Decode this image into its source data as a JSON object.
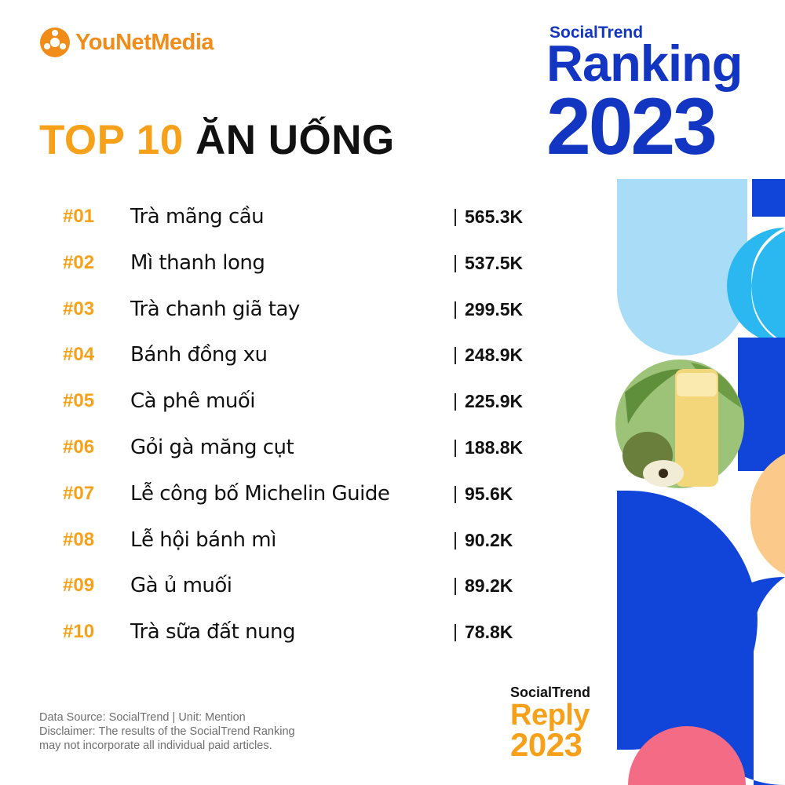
{
  "brand": {
    "logo_text_1": "YouNet",
    "logo_text_2": "Media",
    "logo_icon": "younet-logo-icon",
    "accent_color": "#f7a11a",
    "primary_color": "#1235c2"
  },
  "header": {
    "socialtrend": "SocialTrend",
    "ranking": "Ranking",
    "year": "2023"
  },
  "title": {
    "accent": "TOP 10",
    "main": "ĂN UỐNG"
  },
  "ranking": [
    {
      "rank": "#01",
      "name": "Trà mãng cầu",
      "value": "565.3K"
    },
    {
      "rank": "#02",
      "name": "Mì thanh long",
      "value": "537.5K"
    },
    {
      "rank": "#03",
      "name": "Trà chanh giã tay",
      "value": "299.5K"
    },
    {
      "rank": "#04",
      "name": "Bánh đồng xu",
      "value": "248.9K"
    },
    {
      "rank": "#05",
      "name": "Cà phê muối",
      "value": "225.9K"
    },
    {
      "rank": "#06",
      "name": "Gỏi gà măng cụt",
      "value": "188.8K"
    },
    {
      "rank": "#07",
      "name": "Lễ công bố Michelin Guide",
      "value": "95.6K"
    },
    {
      "rank": "#08",
      "name": "Lễ hội bánh mì",
      "value": "90.2K"
    },
    {
      "rank": "#09",
      "name": "Gà ủ muối",
      "value": "89.2K"
    },
    {
      "rank": "#10",
      "name": "Trà sữa đất nung",
      "value": "78.8K"
    }
  ],
  "footer": {
    "line1": "Data Source: SocialTrend | Unit: Mention",
    "line2": "Disclaimer: The results of the SocialTrend Ranking",
    "line3": "may not incorporate all individual paid articles."
  },
  "badge": {
    "socialtrend": "SocialTrend",
    "reply": "Reply",
    "year": "2023"
  },
  "decor": {
    "image_icon": "soursop-drink-image"
  }
}
